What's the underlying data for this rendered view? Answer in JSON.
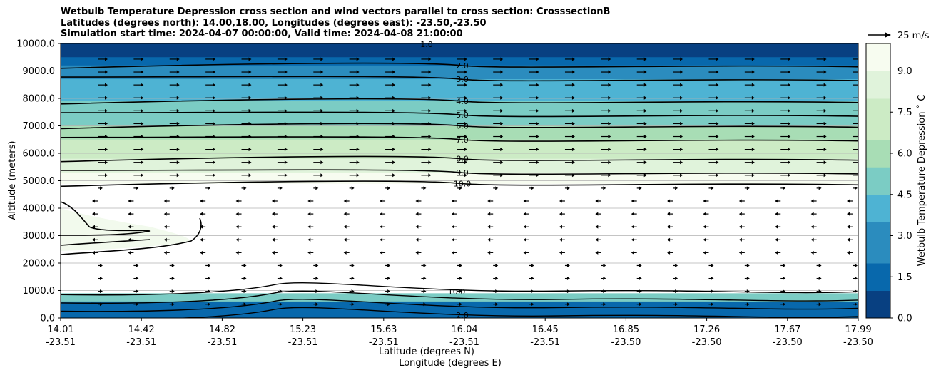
{
  "chart_data": {
    "type": "heatmap",
    "title_lines": [
      "Wetbulb Temperature Depression cross section and wind vectors parallel to cross section: CrosssectionB",
      "Latitudes (degrees north): 14.00,18.00, Longitudes (degrees east): -23.50,-23.50",
      "Simulation start time: 2024-04-07 00:00:00, Valid time: 2024-04-08 21:00:00"
    ],
    "xlabel_lines": [
      "Latitude (degrees N)",
      "Longitude (degrees E)"
    ],
    "ylabel": "Altitude (meters)",
    "colorbar_label": "Wetbulb Temperature Depression ˚ C",
    "quiver_key_label": "25 m/s",
    "x_ticks": [
      {
        "lat": "14.01",
        "lon": "-23.51"
      },
      {
        "lat": "14.42",
        "lon": "-23.51"
      },
      {
        "lat": "14.82",
        "lon": "-23.51"
      },
      {
        "lat": "15.23",
        "lon": "-23.51"
      },
      {
        "lat": "15.63",
        "lon": "-23.51"
      },
      {
        "lat": "16.04",
        "lon": "-23.51"
      },
      {
        "lat": "16.45",
        "lon": "-23.51"
      },
      {
        "lat": "16.85",
        "lon": "-23.50"
      },
      {
        "lat": "17.26",
        "lon": "-23.50"
      },
      {
        "lat": "17.67",
        "lon": "-23.50"
      },
      {
        "lat": "17.99",
        "lon": "-23.50"
      }
    ],
    "y_ticks": [
      "0.0",
      "1000.0",
      "2000.0",
      "3000.0",
      "4000.0",
      "5000.0",
      "6000.0",
      "7000.0",
      "8000.0",
      "9000.0",
      "10000.0"
    ],
    "ylim": [
      0,
      10000
    ],
    "xlim": [
      14.01,
      17.99
    ],
    "grid": "horizontal",
    "colorbar_ticks": [
      "0.0",
      "1.5",
      "3.0",
      "4.5",
      "6.0",
      "7.5",
      "9.0"
    ],
    "colorbar_range": [
      0,
      10
    ],
    "colorbar_position": "right",
    "colormap": [
      "#084081",
      "#0868ac",
      "#2b8cbe",
      "#4eb3d3",
      "#7bccc4",
      "#a8ddb5",
      "#ccebc5",
      "#e0f3db",
      "#f7fcf0"
    ],
    "contour_labels": [
      "1.0",
      "2.0",
      "3.0",
      "4.0",
      "5.0",
      "6.0",
      "7.0",
      "8.0",
      "9.0",
      "10.0"
    ],
    "upper_layer_profile": [
      {
        "alt": 10000,
        "depression": 0.5
      },
      {
        "alt": 9500,
        "depression": 1.5
      },
      {
        "alt": 9200,
        "depression": 2.0
      },
      {
        "alt": 8700,
        "depression": 3.0
      },
      {
        "alt": 7900,
        "depression": 4.0
      },
      {
        "alt": 7400,
        "depression": 5.0
      },
      {
        "alt": 7000,
        "depression": 6.0
      },
      {
        "alt": 6500,
        "depression": 7.0
      },
      {
        "alt": 5800,
        "depression": 8.0
      },
      {
        "alt": 5300,
        "depression": 9.0
      },
      {
        "alt": 4900,
        "depression": 10.0
      }
    ],
    "lower_layer_profile": [
      {
        "alt": 900,
        "depression": 8.0
      },
      {
        "alt": 600,
        "depression": 2.0
      },
      {
        "alt": 300,
        "depression": 1.0
      },
      {
        "alt": 0,
        "depression": 1.5
      }
    ]
  }
}
